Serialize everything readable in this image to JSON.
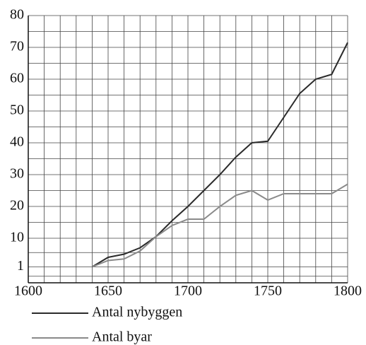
{
  "chart_data": {
    "type": "line",
    "x": [
      1640,
      1650,
      1660,
      1670,
      1680,
      1690,
      1700,
      1710,
      1720,
      1730,
      1740,
      1750,
      1760,
      1770,
      1780,
      1790,
      1800
    ],
    "series": [
      {
        "name": "Antal nybyggen",
        "color": "#2b2b2b",
        "values": [
          1,
          4,
          5,
          7,
          10.5,
          15.5,
          20,
          25,
          30,
          35.5,
          40,
          40.5,
          48,
          55.5,
          60,
          61.5,
          71.5
        ]
      },
      {
        "name": "Antal byar",
        "color": "#8a8a8a",
        "values": [
          1,
          3,
          3.5,
          6,
          10.5,
          14,
          16,
          16,
          20,
          23.5,
          25,
          22,
          24,
          24,
          24,
          24,
          27
        ]
      }
    ],
    "xlim": [
      1600,
      1800
    ],
    "xticks": [
      1600,
      1650,
      1700,
      1750,
      1800
    ],
    "ylim": [
      -4,
      80
    ],
    "yticks": [
      1,
      10,
      20,
      30,
      40,
      50,
      60,
      70,
      80
    ],
    "grid": true
  }
}
